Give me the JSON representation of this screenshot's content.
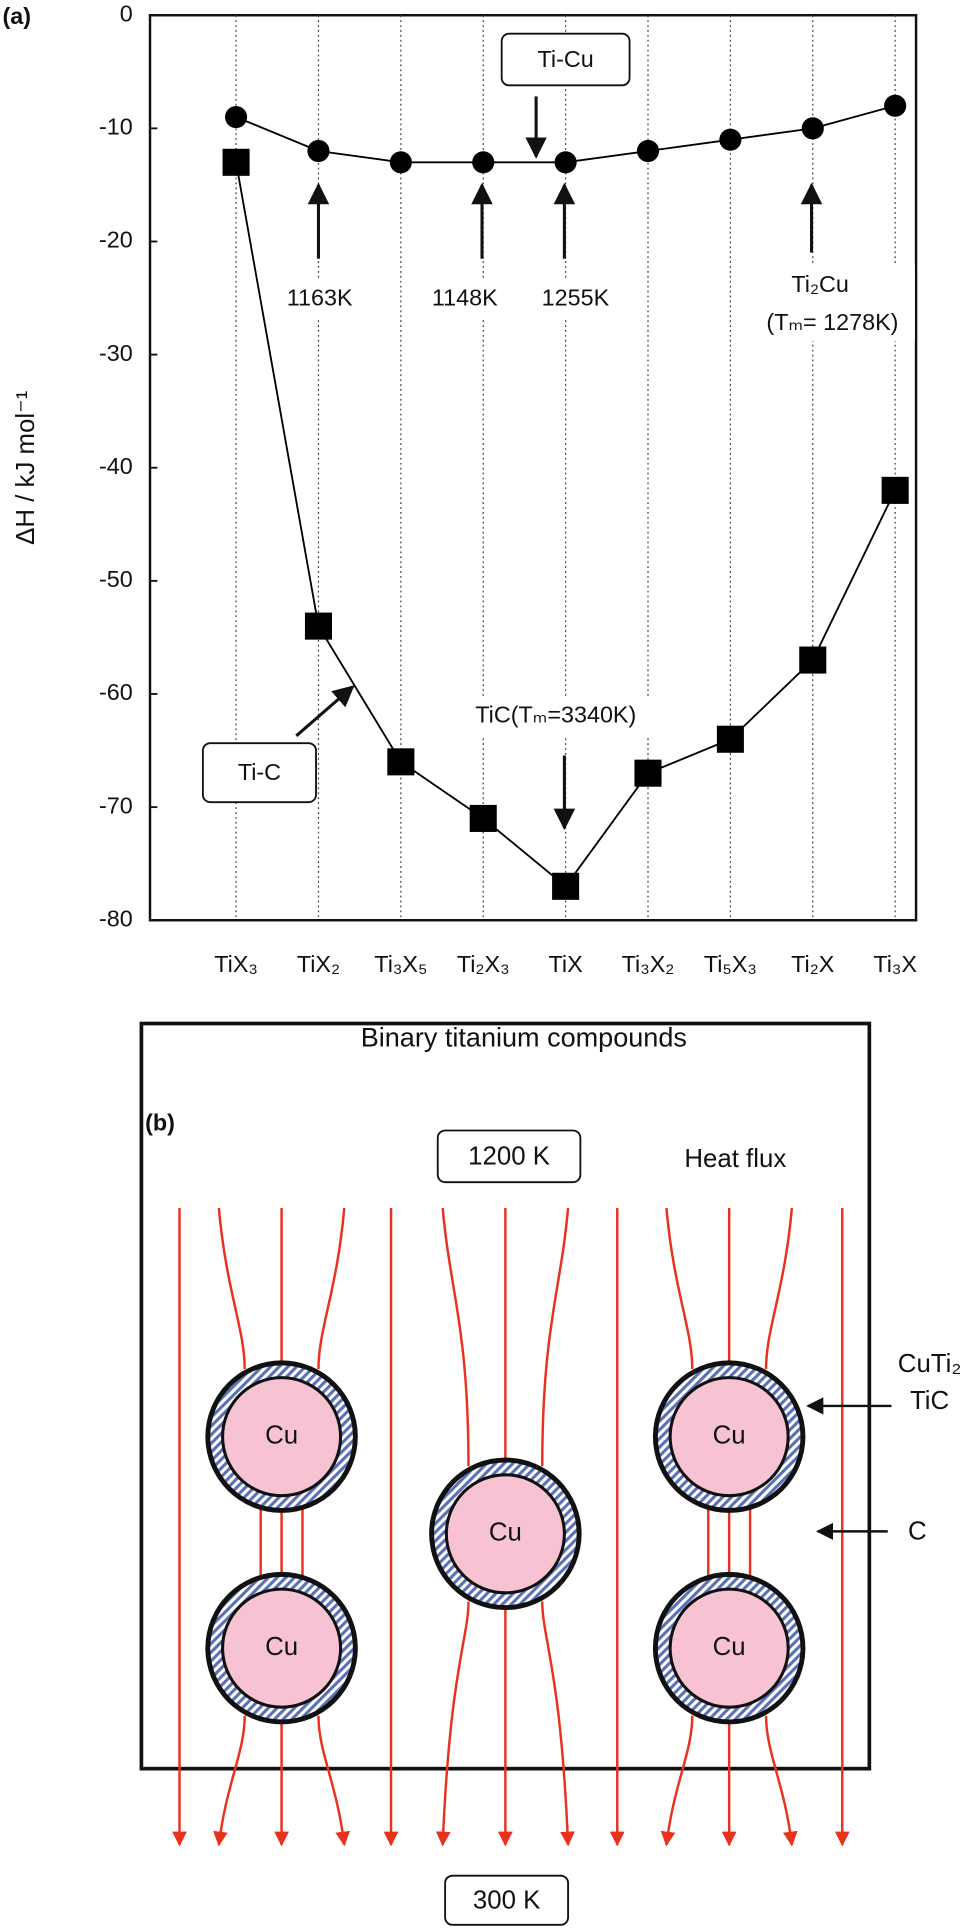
{
  "chart_data": {
    "type": "line",
    "panel_label": "(a)",
    "xlabel": "Binary titanium compounds",
    "ylabel": "ΔH / kJ mol⁻¹",
    "categories": [
      "TiX₃",
      "TiX₂",
      "Ti₃X₅",
      "Ti₂X₃",
      "TiX",
      "Ti₃X₂",
      "Ti₅X₃",
      "Ti₂X",
      "Ti₃X"
    ],
    "series": [
      {
        "name": "Ti-Cu",
        "color": "#000000",
        "marker": "circle",
        "values": [
          -9,
          -12,
          -13,
          -13,
          -13,
          -12,
          -11,
          -10,
          -8
        ]
      },
      {
        "name": "Ti-C",
        "color": "#000000",
        "marker": "square",
        "values": [
          -13,
          -54,
          -66,
          -71,
          -77,
          -67,
          -64,
          -57,
          -42
        ]
      }
    ],
    "ylim": [
      -80,
      0
    ],
    "yticks": [
      0,
      -10,
      -20,
      -30,
      -40,
      -50,
      -60,
      -70,
      -80
    ],
    "grid_x": true,
    "annotations": [
      "1163K",
      "1148K",
      "1255K",
      "Ti₂Cu",
      "(Tₘ= 1278K)",
      "TiC(Tₘ=3340K)"
    ]
  },
  "diagram": {
    "label": "(b)",
    "top_temperature": "1200 K",
    "heat_flux": "Heat flux",
    "bottom_temperature": "300 K",
    "particles": [
      "Cu",
      "Cu",
      "Cu",
      "Cu",
      "Cu"
    ],
    "shell_labels": [
      "CuTi₂",
      "TiC"
    ],
    "matrix_label": "C"
  }
}
